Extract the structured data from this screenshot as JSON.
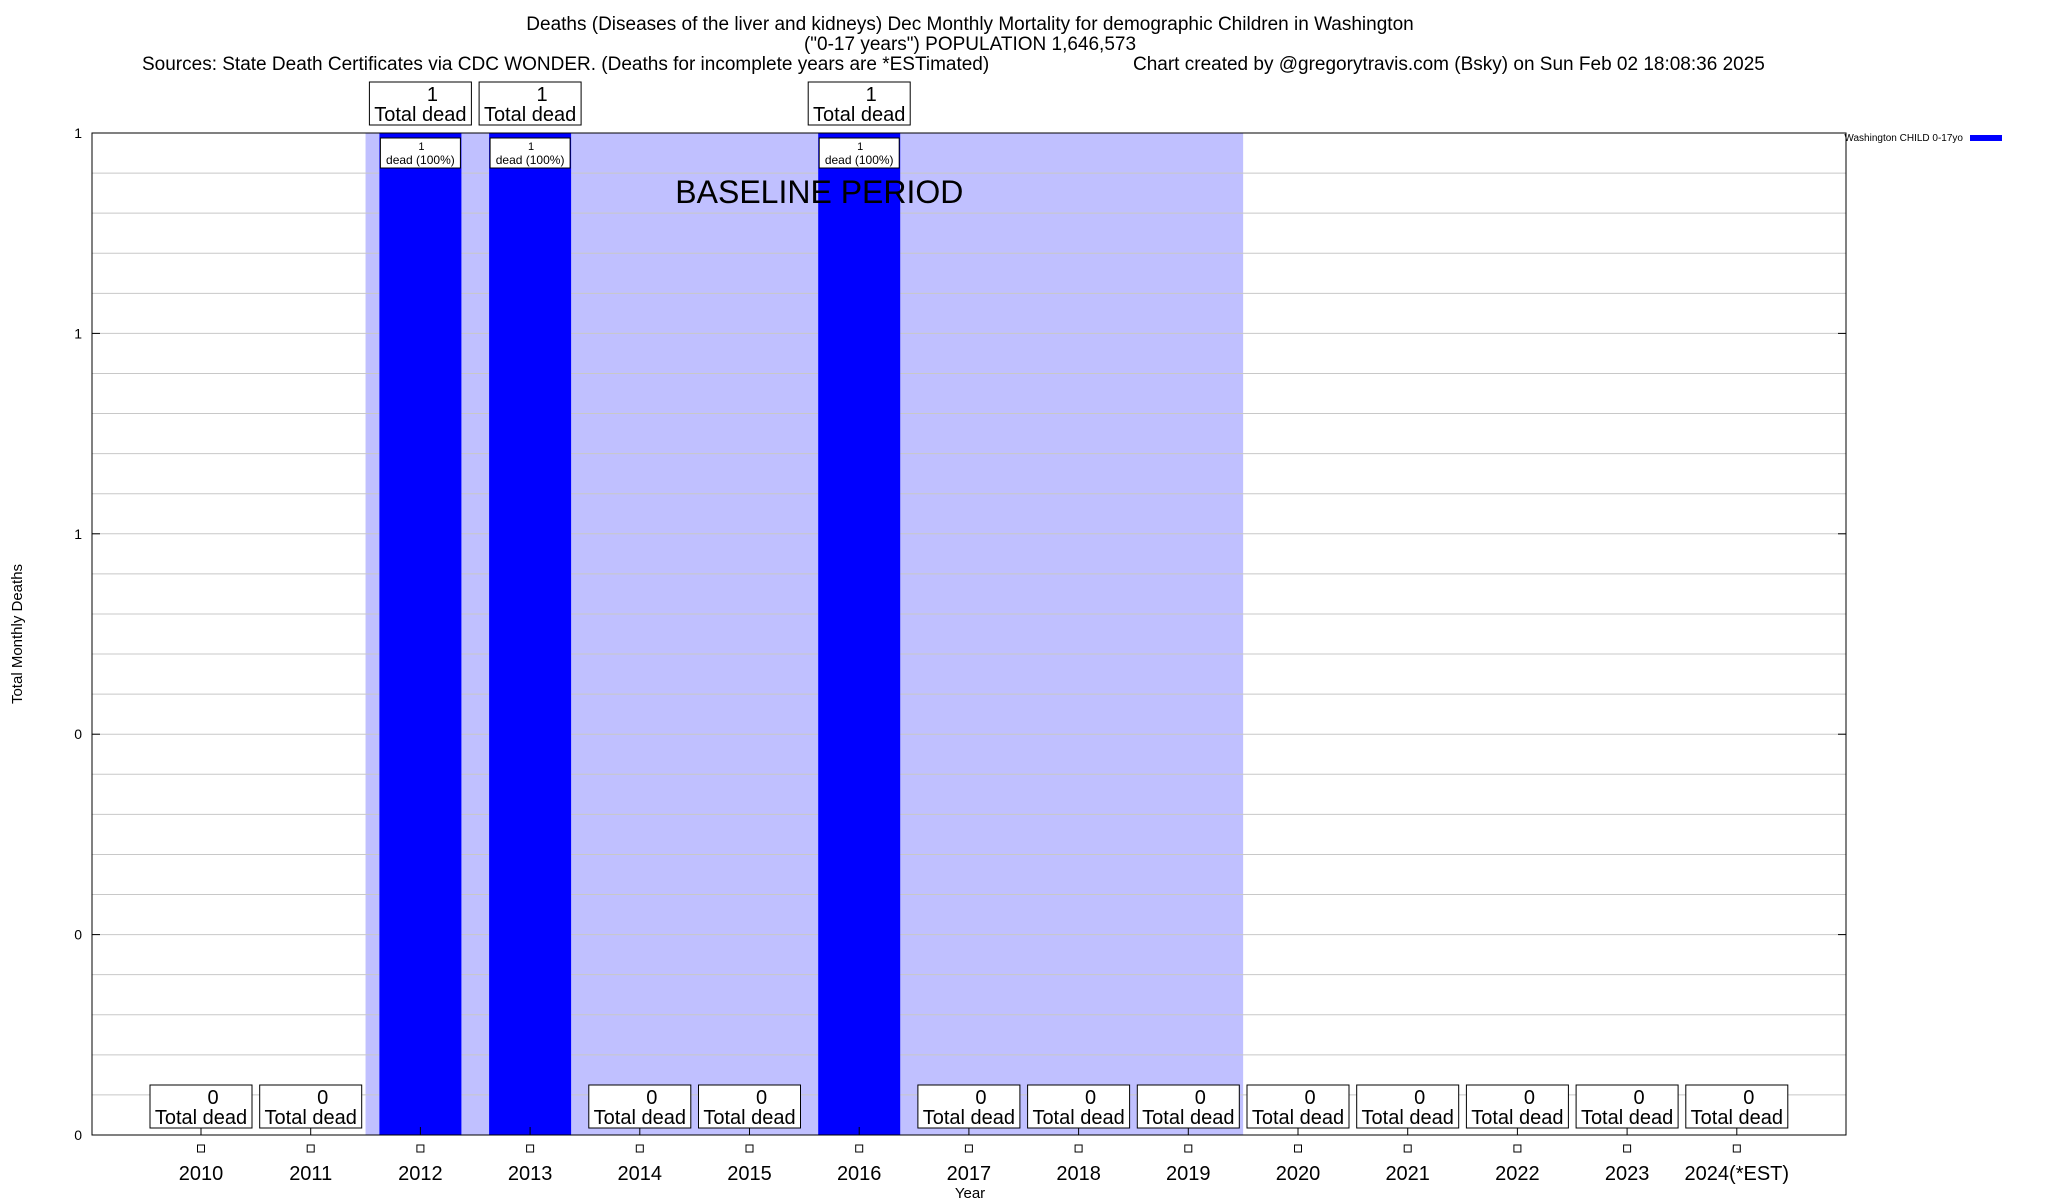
{
  "chart_data": {
    "type": "bar",
    "title": "Deaths (Diseases of the liver and kidneys) Dec Monthly Mortality for demographic Children in Washington",
    "subtitle": "(\"0-17 years\") POPULATION 1,646,573",
    "sources": "Sources: State Death Certificates via CDC WONDER. (Deaths for incomplete years are *ESTimated)",
    "credit": "Chart created by @gregorytravis.com (Bsky) on Sun Feb 02 18:08:36 2025",
    "xlabel": "Year",
    "ylabel": "Total Monthly Deaths",
    "ylim": [
      0,
      1
    ],
    "ytick_labels": [
      "0",
      "0",
      "0",
      "1",
      "1",
      "1"
    ],
    "categories": [
      "2010",
      "2011",
      "2012",
      "2013",
      "2014",
      "2015",
      "2016",
      "2017",
      "2018",
      "2019",
      "2020",
      "2021",
      "2022",
      "2023",
      "2024(*EST)"
    ],
    "series": [
      {
        "name": "Washington CHILD 0-17yo",
        "color": "#0000ff",
        "values": [
          0,
          0,
          1,
          1,
          0,
          0,
          1,
          0,
          0,
          0,
          0,
          0,
          0,
          0,
          0
        ]
      }
    ],
    "total_label_suffix": "Total dead",
    "bar_label_suffix": "dead (100%)",
    "baseline": {
      "label": "BASELINE PERIOD",
      "start": "2012",
      "end": "2019",
      "color": "#c0c0ff"
    },
    "grid": true,
    "legend_position": "top-right"
  }
}
